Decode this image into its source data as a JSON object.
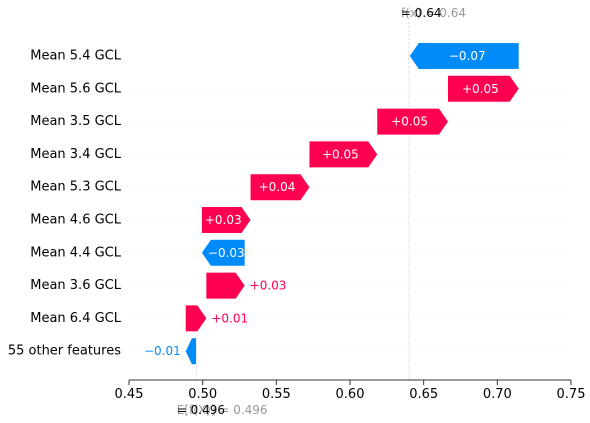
{
  "chart_data": {
    "type": "waterfall",
    "top_value_label": "f(x) = 0.64",
    "top_value_overlay": "= 0.64",
    "base_value_label": "E[f(X)] = 0.496",
    "base_value_overlay": "= 0.496",
    "f_x": 0.64,
    "base_value": 0.496,
    "xlim": [
      0.45,
      0.75
    ],
    "x_ticks": [
      0.45,
      0.5,
      0.55,
      0.6,
      0.65,
      0.7,
      0.75
    ],
    "x_tick_labels": [
      "0.45",
      "0.50",
      "0.55",
      "0.60",
      "0.65",
      "0.70",
      "0.75"
    ],
    "features": [
      {
        "name": "Mean 5.4 GCL",
        "start": 0.7145,
        "end": 0.6406,
        "label": "−0.07"
      },
      {
        "name": "Mean 5.6 GCL",
        "start": 0.6665,
        "end": 0.7145,
        "label": "+0.05"
      },
      {
        "name": "Mean 3.5 GCL",
        "start": 0.6185,
        "end": 0.6665,
        "label": "+0.05"
      },
      {
        "name": "Mean 3.4 GCL",
        "start": 0.5725,
        "end": 0.6185,
        "label": "+0.05"
      },
      {
        "name": "Mean 5.3 GCL",
        "start": 0.5325,
        "end": 0.5725,
        "label": "+0.04"
      },
      {
        "name": "Mean 4.6 GCL",
        "start": 0.4995,
        "end": 0.5325,
        "label": "+0.03"
      },
      {
        "name": "Mean 4.4 GCL",
        "start": 0.5285,
        "end": 0.4995,
        "label": "−0.03"
      },
      {
        "name": "Mean 3.6 GCL",
        "start": 0.5025,
        "end": 0.5285,
        "label": "+0.03"
      },
      {
        "name": "Mean 6.4 GCL",
        "start": 0.4885,
        "end": 0.5025,
        "label": "+0.01"
      },
      {
        "name": "55 other features",
        "start": 0.4955,
        "end": 0.4885,
        "label": "−0.01"
      }
    ],
    "colors": {
      "positive": "#ff0051",
      "negative": "#008bfb",
      "axis": "#333333",
      "gridline": "#cccccc",
      "faded_text": "#999999"
    }
  }
}
